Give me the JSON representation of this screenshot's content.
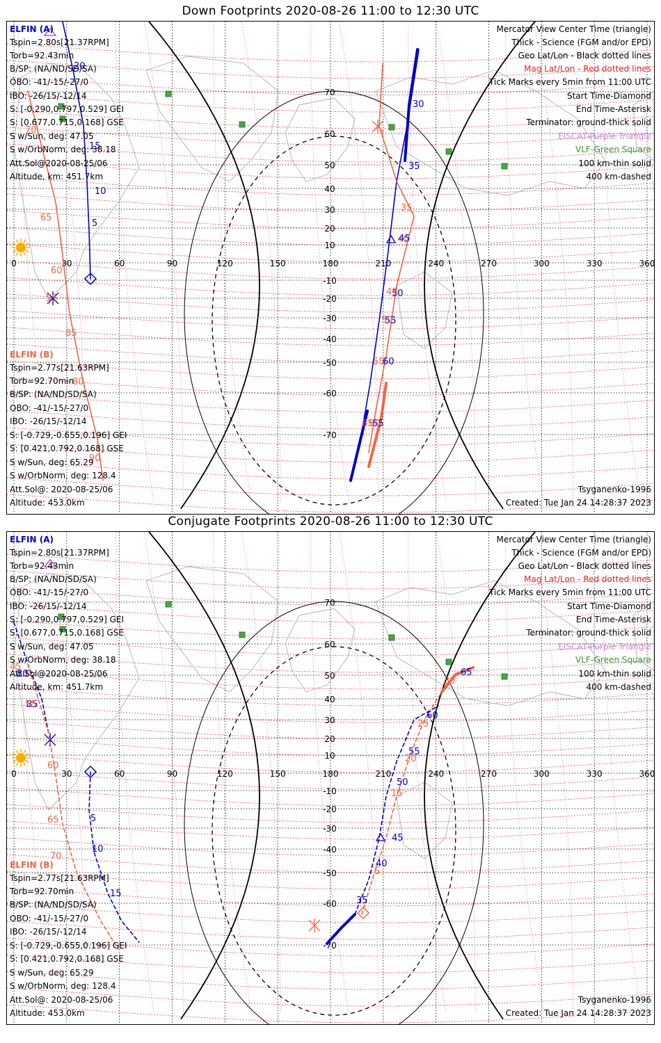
{
  "panels": [
    {
      "id": "down",
      "title": "Down Footprints 2020-08-26 11:00 to 12:30 UTC",
      "sat_a": {
        "name": "ELFIN (A)",
        "lines": [
          "Tspin=2.80s[21.37RPM]",
          "Torb=92.43min",
          "B/SP: (NA/ND/SD/SA)",
          "OBO: -41/-15/-27/0",
          "IBO: -26/15/-12/14",
          "S: [-0.290,0.797,0.529] GEI",
          "S: [0.677,0.715,0.168] GSE",
          "S w/Sun, deg: 47.05",
          "S w/OrbNorm, deg: 38.18",
          "Att.Sol@2020-08-25/06",
          "Altitude, km: 451.7km"
        ]
      },
      "sat_b": {
        "name": "ELFIN (B)",
        "lines": [
          "Tspin=2.77s[21.63RPM]",
          "Torb=92.70min",
          "B/SP: (NA/ND/SD/SA)",
          "OBO: -41/-15/-27/0",
          "IBO: -26/15/-12/14",
          "S: [-0.729,-0.655,0.196] GEI",
          "S: [0.421,0.792,0.168] GSE",
          "S w/Sun, deg: 65.29",
          "S w/OrbNorm, deg: 128.4",
          "Att.Sol@: 2020-08-25/06",
          "Altitude: 453.0km"
        ]
      },
      "legend": [
        "Mercator View Center Time (triangle)",
        "Thick - Science (FGM and/or EPD)",
        "Geo Lat/Lon - Black dotted lines",
        "Mag Lat/Lon - Red dotted lines",
        "Tick Marks every 5min from 11:00 UTC",
        "Start Time-Diamond",
        "End Time-Asterisk",
        "Terminator: ground-thick solid",
        "EISCAT-Purple Triangle",
        "VLF-Green Square",
        "100 km-thin solid",
        "400 km-dashed"
      ],
      "model": "Tsyganenko-1996",
      "created": "Created: Tue Jan 24 14:28:37 2023",
      "lon_ticks": [
        "0",
        "30",
        "60",
        "90",
        "120",
        "150",
        "180",
        "210",
        "240",
        "270",
        "300",
        "330",
        "360"
      ],
      "lat_ticks": [
        "70",
        "60",
        "50",
        "40",
        "30",
        "20",
        "10",
        "-10",
        "-20",
        "-30",
        "-40",
        "-50",
        "-60",
        "-70"
      ],
      "track_labels_a": [
        "20",
        "15",
        "10",
        "5",
        "30",
        "35",
        "45",
        "50",
        "55",
        "60",
        "65"
      ],
      "track_labels_b": [
        "70",
        "65",
        "60",
        "55",
        "85",
        "80",
        "90",
        "35",
        "40",
        "45",
        "50",
        "55",
        "60",
        "65"
      ]
    },
    {
      "id": "conj",
      "title": "Conjugate Footprints 2020-08-26 11:00 to 12:30 UTC",
      "sat_a": {
        "name": "ELFIN (A)",
        "lines": [
          "Tspin=2.80s[21.37RPM]",
          "Torb=92.43min",
          "B/SP: (NA/ND/SD/SA)",
          "OBO: -41/-15/-27/0",
          "IBO: -26/15/-12/14",
          "S: [-0.290,0.797,0.529] GEI",
          "S: [0.677,0.715,0.168] GSE",
          "S w/Sun, deg: 47.05",
          "S w/OrbNorm, deg: 38.18",
          "Att.Sol@2020-08-25/06",
          "Altitude, km: 451.7km"
        ]
      },
      "sat_b": {
        "name": "ELFIN (B)",
        "lines": [
          "Tspin=2.77s[21.63RPM]",
          "Torb=92.70min",
          "B/SP: (NA/ND/SD/SA)",
          "OBO: -41/-15/-27/0",
          "IBO: -26/15/-12/14",
          "S: [-0.729,-0.655,0.196] GEI",
          "S: [0.421,0.792,0.168] GSE",
          "S w/Sun, deg: 65.29",
          "S w/OrbNorm, deg: 128.4",
          "Att.Sol@: 2020-08-25/06",
          "Altitude: 453.0km"
        ]
      },
      "legend": [
        "Mercator View Center Time (triangle)",
        "Thick - Science (FGM and/or EPD)",
        "Geo Lat/Lon - Black dotted lines",
        "Mag Lat/Lon - Red dotted lines",
        "Tick Marks every 5min from 11:00 UTC",
        "Start Time-Diamond",
        "End Time-Asterisk",
        "Terminator: ground-thick solid",
        "EISCAT-Purple Triangle",
        "VLF-Green Square",
        "100 km-thin solid",
        "400 km-dashed"
      ],
      "model": "Tsyganenko-1996",
      "created": "Created: Tue Jan 24 14:28:37 2023",
      "lon_ticks": [
        "0",
        "30",
        "60",
        "90",
        "120",
        "150",
        "180",
        "210",
        "240",
        "270",
        "300",
        "330",
        "360"
      ],
      "lat_ticks": [
        "70",
        "60",
        "50",
        "40",
        "30",
        "20",
        "10",
        "-10",
        "-20",
        "-30",
        "-40",
        "-50",
        "-60",
        "-70"
      ],
      "track_labels_a": [
        "80",
        "85",
        "5",
        "10",
        "15",
        "45",
        "40",
        "35",
        "50",
        "55",
        "60",
        "65"
      ],
      "track_labels_b": [
        "45",
        "55",
        "60",
        "65",
        "70",
        "30",
        "25",
        "20",
        "15",
        "5"
      ]
    }
  ],
  "colors": {
    "sat_a": "#0000cc",
    "sat_b": "#ee6644",
    "mag_grid": "#ee2222",
    "eiscat": "#cc88cc",
    "vlf": "#339933",
    "sun": "#ffaa00"
  }
}
